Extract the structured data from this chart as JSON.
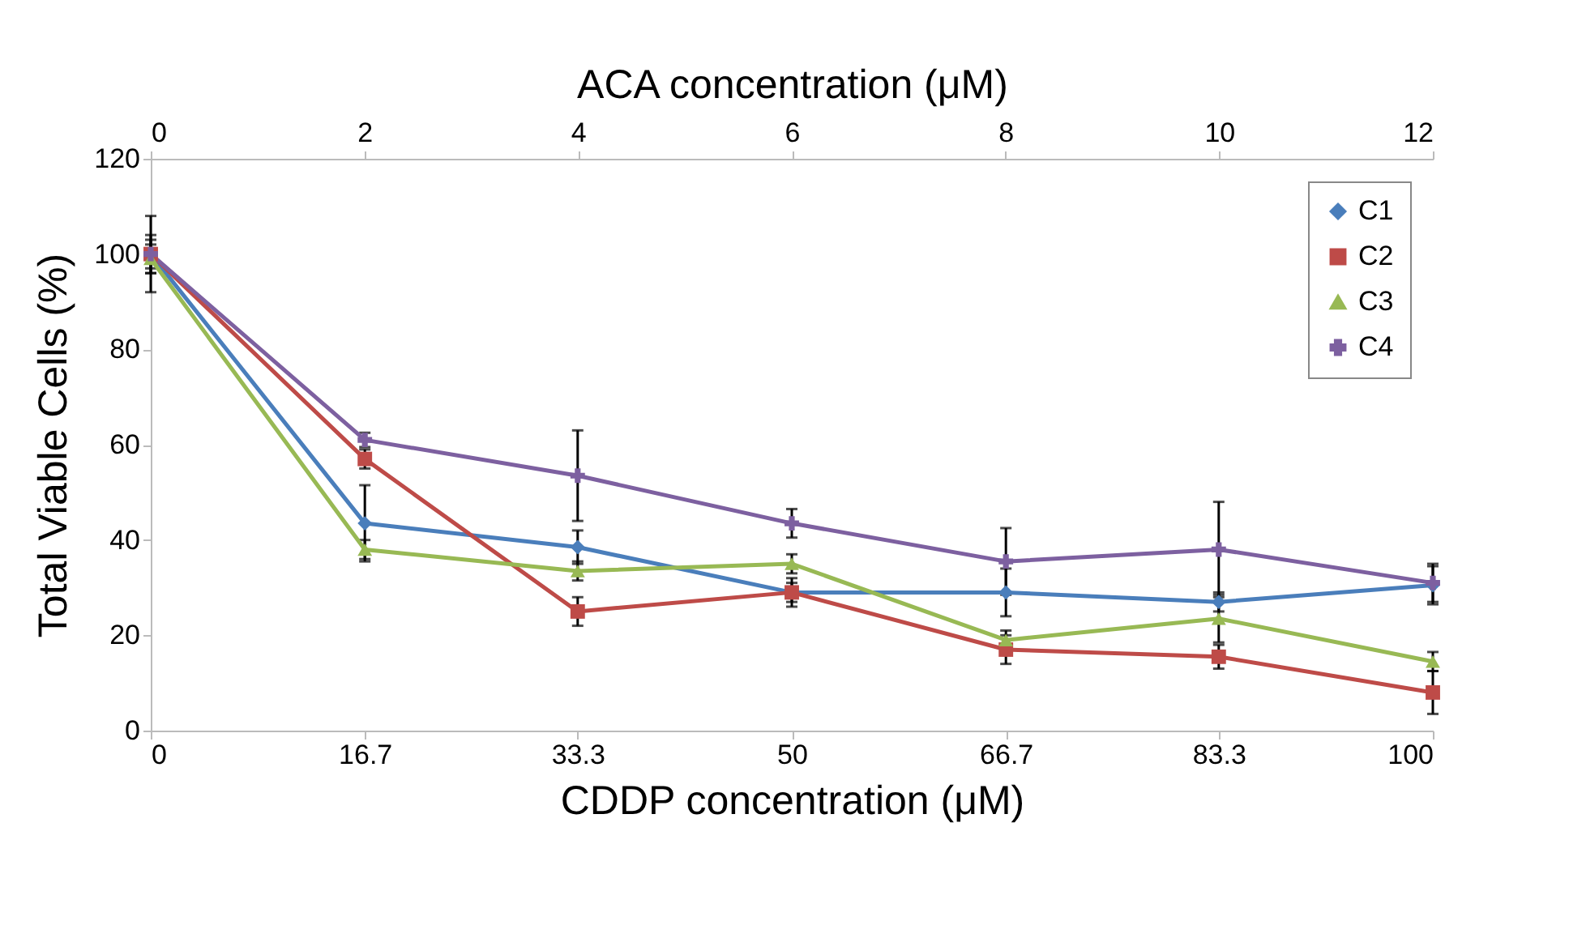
{
  "chart_data": {
    "type": "line",
    "xlabel": "CDDP concentration (μM)",
    "x2label": "ACA concentration (μM)",
    "ylabel": "Total Viable Cells (%)",
    "x": [
      0,
      16.7,
      33.3,
      50,
      66.7,
      83.3,
      100
    ],
    "xlim": [
      0,
      100
    ],
    "xticks": [
      0,
      16.7,
      33.3,
      50,
      66.7,
      83.3,
      100
    ],
    "x2lim": [
      0,
      12
    ],
    "x2ticks": [
      0,
      2,
      4,
      6,
      8,
      10,
      12
    ],
    "ylim": [
      0,
      120
    ],
    "yticks": [
      0,
      20,
      40,
      60,
      80,
      100,
      120
    ],
    "grid": false,
    "legend": "top right",
    "line_style": "solid",
    "series": [
      {
        "name": "C1",
        "color": "#4a7ebb",
        "marker": "diamond",
        "values": [
          100,
          43.5,
          38.5,
          29,
          29,
          27,
          30.5
        ],
        "errors": [
          4,
          8,
          3.5,
          2,
          5,
          2,
          4
        ]
      },
      {
        "name": "C2",
        "color": "#be4b48",
        "marker": "square",
        "values": [
          100,
          57,
          25,
          29,
          17,
          15.5,
          8
        ],
        "errors": [
          3,
          2,
          3,
          3,
          3,
          2.5,
          4.5
        ]
      },
      {
        "name": "C3",
        "color": "#98b954",
        "marker": "triangle",
        "values": [
          99,
          38,
          33.5,
          35,
          19,
          23.5,
          14.5
        ],
        "errors": [
          3,
          2,
          2,
          2,
          2,
          5,
          2
        ]
      },
      {
        "name": "C4",
        "color": "#7d60a0",
        "marker": "cross",
        "values": [
          100,
          61,
          53.5,
          43.5,
          35.5,
          38,
          31
        ],
        "errors": [
          8,
          1.5,
          9.5,
          3,
          7,
          10,
          4
        ]
      }
    ]
  }
}
